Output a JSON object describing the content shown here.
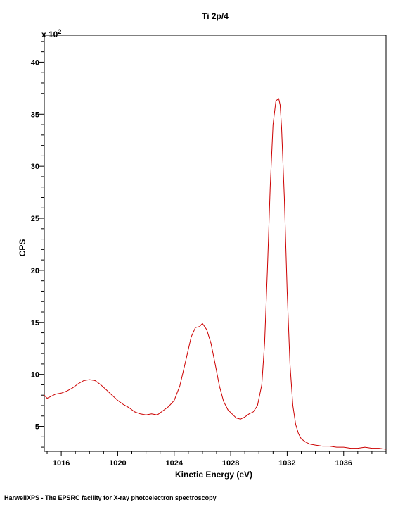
{
  "footer_text": "HarwellXPS - The EPSRC facility for X-ray photoelectron spectroscopy",
  "colors": {
    "line": "#cc0000",
    "axis": "#000000",
    "background": "#ffffff"
  },
  "chart_data": {
    "type": "line",
    "title": "Ti 2p/4",
    "xlabel": "Kinetic Energy (eV)",
    "ylabel": "CPS",
    "y_multiplier_label": "x 10",
    "y_multiplier_exponent": "2",
    "xlim": [
      1014.8,
      1039.0
    ],
    "ylim": [
      2.6,
      42.6
    ],
    "x_ticks": [
      1016,
      1020,
      1024,
      1028,
      1032,
      1036
    ],
    "x_minor_step": 1,
    "y_ticks": [
      5,
      10,
      15,
      20,
      25,
      30,
      35,
      40
    ],
    "y_minor_step": 1,
    "grid": false,
    "series": [
      {
        "x": [
          1014.8,
          1015.0,
          1015.3,
          1015.6,
          1016.0,
          1016.4,
          1016.8,
          1017.2,
          1017.6,
          1018.0,
          1018.4,
          1018.8,
          1019.2,
          1019.6,
          1020.0,
          1020.4,
          1020.8,
          1021.2,
          1021.6,
          1022.0,
          1022.4,
          1022.8,
          1023.2,
          1023.6,
          1024.0,
          1024.4,
          1024.8,
          1025.2,
          1025.5,
          1025.8,
          1026.0,
          1026.3,
          1026.6,
          1026.9,
          1027.2,
          1027.5,
          1027.8,
          1028.1,
          1028.4,
          1028.7,
          1029.0,
          1029.3,
          1029.6,
          1029.9,
          1030.2,
          1030.4,
          1030.6,
          1030.8,
          1031.0,
          1031.2,
          1031.4,
          1031.5,
          1031.6,
          1031.8,
          1032.0,
          1032.2,
          1032.4,
          1032.6,
          1032.8,
          1033.0,
          1033.3,
          1033.6,
          1034.0,
          1034.5,
          1035.0,
          1035.5,
          1036.0,
          1036.5,
          1037.0,
          1037.5,
          1038.0,
          1038.5,
          1039.0
        ],
        "y": [
          8.0,
          7.7,
          7.9,
          8.1,
          8.2,
          8.4,
          8.7,
          9.1,
          9.4,
          9.5,
          9.4,
          9.0,
          8.5,
          8.0,
          7.5,
          7.1,
          6.8,
          6.4,
          6.2,
          6.1,
          6.2,
          6.1,
          6.5,
          6.9,
          7.5,
          8.9,
          11.2,
          13.6,
          14.5,
          14.6,
          14.9,
          14.3,
          13.0,
          11.0,
          8.9,
          7.4,
          6.6,
          6.2,
          5.8,
          5.7,
          5.9,
          6.2,
          6.4,
          7.0,
          9.0,
          13.0,
          20.0,
          28.0,
          34.0,
          36.3,
          36.5,
          35.9,
          33.8,
          27.0,
          18.0,
          11.0,
          7.0,
          5.2,
          4.3,
          3.8,
          3.5,
          3.3,
          3.2,
          3.1,
          3.1,
          3.0,
          3.0,
          2.9,
          2.9,
          3.0,
          2.9,
          2.9,
          2.8
        ]
      }
    ]
  }
}
